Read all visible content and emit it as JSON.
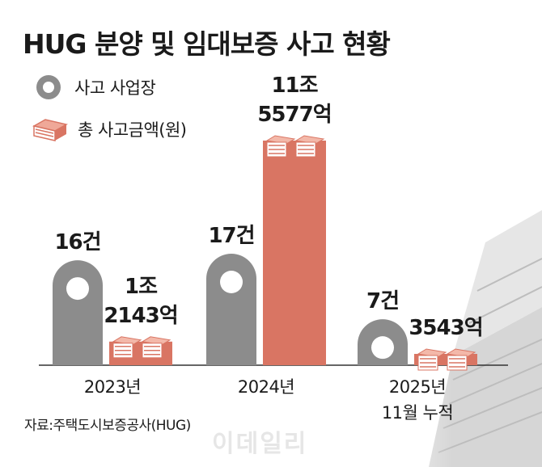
{
  "title": "HUG 분양 및 임대보증 사고 현황",
  "legend": [
    {
      "label": "사고 사업장",
      "icon": "circle-marker-icon"
    },
    {
      "label": "총 사고금액(원)",
      "icon": "money-stack-icon"
    }
  ],
  "source": "자료:주택도시보증공사(HUG)",
  "watermark": "이데일리",
  "colors": {
    "sites": "#8c8c8c",
    "amount": "#d97563",
    "text": "#1a1a1a"
  },
  "chart_data": {
    "type": "bar",
    "title": "HUG 분양 및 임대보증 사고 현황",
    "categories": [
      "2023년",
      "2024년",
      "2025년 11월 누적"
    ],
    "category_lines": [
      [
        "2023년"
      ],
      [
        "2024년"
      ],
      [
        "2025년",
        "11월 누적"
      ]
    ],
    "series": [
      {
        "name": "사고 사업장",
        "unit": "건",
        "values": [
          16,
          17,
          7
        ],
        "labels": [
          [
            "16건"
          ],
          [
            "17건"
          ],
          [
            "7건"
          ]
        ]
      },
      {
        "name": "총 사고금액(원)",
        "unit": "억원",
        "values": [
          12143,
          115577,
          3543
        ],
        "labels": [
          [
            "1조",
            "2143억"
          ],
          [
            "11조",
            "5577억"
          ],
          [
            "3543억"
          ]
        ]
      }
    ],
    "legend_position": "top-left",
    "grid": false
  }
}
